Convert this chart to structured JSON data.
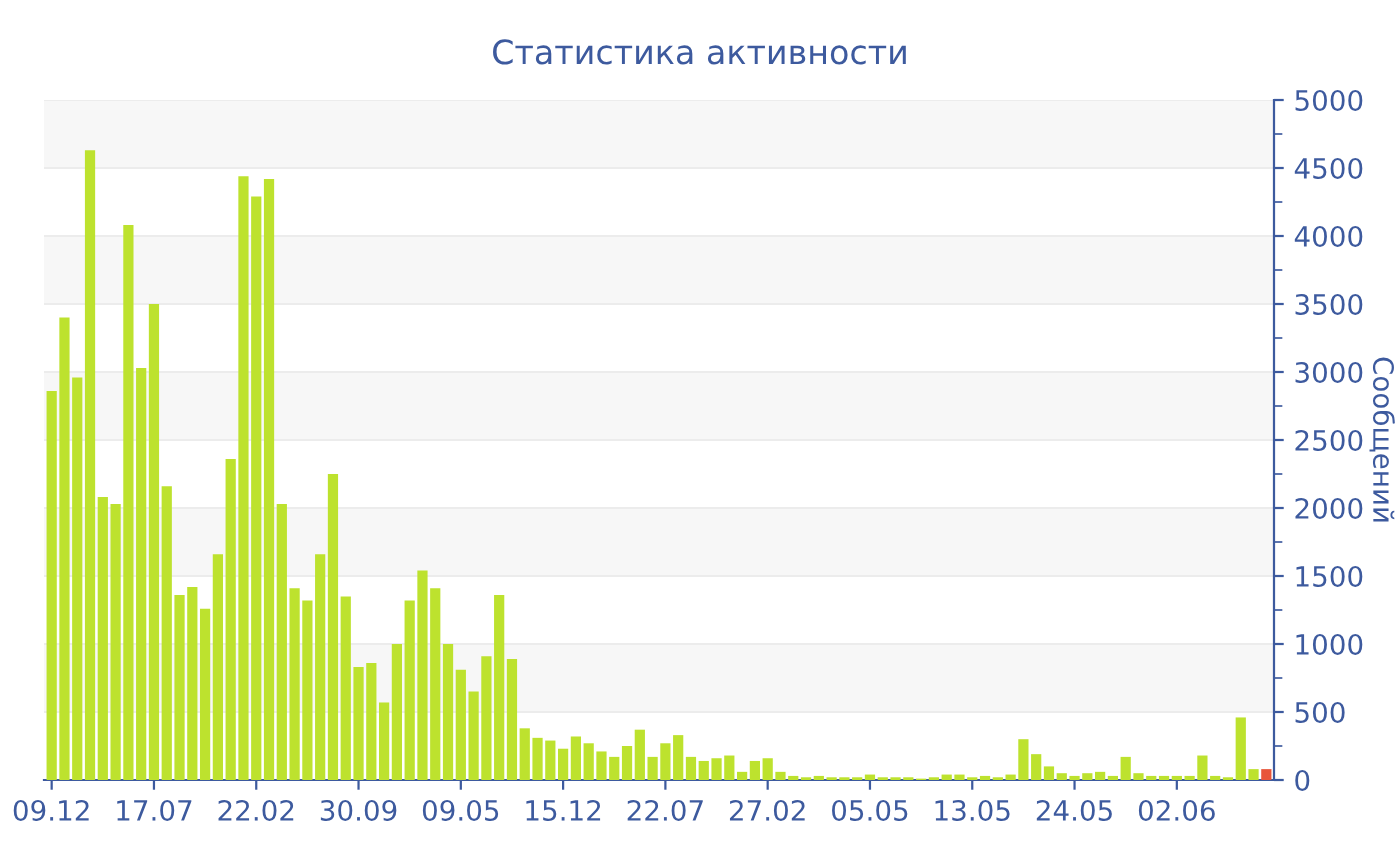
{
  "chart_data": {
    "type": "bar",
    "title": "Статистика активности",
    "ylabel": "Сообщений",
    "categories": [
      "09.12",
      null,
      null,
      null,
      null,
      null,
      null,
      null,
      "17.07",
      null,
      null,
      null,
      null,
      null,
      null,
      null,
      "22.02",
      null,
      null,
      null,
      null,
      null,
      null,
      null,
      "30.09",
      null,
      null,
      null,
      null,
      null,
      null,
      null,
      "09.05",
      null,
      null,
      null,
      null,
      null,
      null,
      null,
      "15.12",
      null,
      null,
      null,
      null,
      null,
      null,
      null,
      "22.07",
      null,
      null,
      null,
      null,
      null,
      null,
      null,
      "27.02",
      null,
      null,
      null,
      null,
      null,
      null,
      null,
      "05.05",
      null,
      null,
      null,
      null,
      null,
      null,
      null,
      "13.05",
      null,
      null,
      null,
      null,
      null,
      null,
      null,
      "24.05",
      null,
      null,
      null,
      null,
      null,
      null,
      null,
      "02.06",
      null,
      null,
      null,
      null,
      null,
      null,
      null
    ],
    "values": [
      2860,
      3400,
      2960,
      4630,
      2080,
      2030,
      4080,
      3030,
      3500,
      2160,
      1360,
      1420,
      1260,
      1660,
      2360,
      4440,
      4290,
      4420,
      2030,
      1410,
      1320,
      1660,
      2250,
      1350,
      830,
      860,
      570,
      1000,
      1320,
      1540,
      1410,
      1000,
      810,
      650,
      910,
      1360,
      890,
      380,
      310,
      290,
      230,
      320,
      270,
      210,
      170,
      250,
      370,
      170,
      270,
      330,
      170,
      140,
      160,
      180,
      60,
      140,
      160,
      60,
      30,
      20,
      30,
      20,
      20,
      20,
      40,
      20,
      20,
      20,
      10,
      20,
      40,
      40,
      20,
      30,
      20,
      40,
      300,
      190,
      100,
      50,
      30,
      50,
      60,
      30,
      170,
      50,
      30,
      30,
      30,
      30,
      180,
      30,
      20,
      460,
      80,
      80
    ],
    "colors": [
      "#bde22e",
      "#bde22e",
      "#bde22e",
      "#bde22e",
      "#bde22e",
      "#bde22e",
      "#bde22e",
      "#bde22e",
      "#bde22e",
      "#bde22e",
      "#bde22e",
      "#bde22e",
      "#bde22e",
      "#bde22e",
      "#bde22e",
      "#bde22e",
      "#bde22e",
      "#bde22e",
      "#bde22e",
      "#bde22e",
      "#bde22e",
      "#bde22e",
      "#bde22e",
      "#bde22e",
      "#bde22e",
      "#bde22e",
      "#bde22e",
      "#bde22e",
      "#bde22e",
      "#bde22e",
      "#bde22e",
      "#bde22e",
      "#bde22e",
      "#bde22e",
      "#bde22e",
      "#bde22e",
      "#bde22e",
      "#bde22e",
      "#bde22e",
      "#bde22e",
      "#bde22e",
      "#bde22e",
      "#bde22e",
      "#bde22e",
      "#bde22e",
      "#bde22e",
      "#bde22e",
      "#bde22e",
      "#bde22e",
      "#bde22e",
      "#bde22e",
      "#bde22e",
      "#bde22e",
      "#bde22e",
      "#bde22e",
      "#bde22e",
      "#bde22e",
      "#bde22e",
      "#bde22e",
      "#bde22e",
      "#bde22e",
      "#bde22e",
      "#bde22e",
      "#bde22e",
      "#bde22e",
      "#bde22e",
      "#bde22e",
      "#bde22e",
      "#bde22e",
      "#bde22e",
      "#bde22e",
      "#bde22e",
      "#bde22e",
      "#bde22e",
      "#bde22e",
      "#bde22e",
      "#bde22e",
      "#bde22e",
      "#bde22e",
      "#bde22e",
      "#bde22e",
      "#bde22e",
      "#bde22e",
      "#bde22e",
      "#bde22e",
      "#bde22e",
      "#bde22e",
      "#bde22e",
      "#bde22e",
      "#bde22e",
      "#bde22e",
      "#bde22e",
      "#bde22e",
      "#bde22e",
      "#bde22e",
      "#e8553a"
    ],
    "ylim": [
      0,
      5000
    ],
    "yticks": [
      0,
      500,
      1000,
      1500,
      2000,
      2500,
      3000,
      3500,
      4000,
      4500,
      5000
    ],
    "grid": "y",
    "legend": false
  }
}
